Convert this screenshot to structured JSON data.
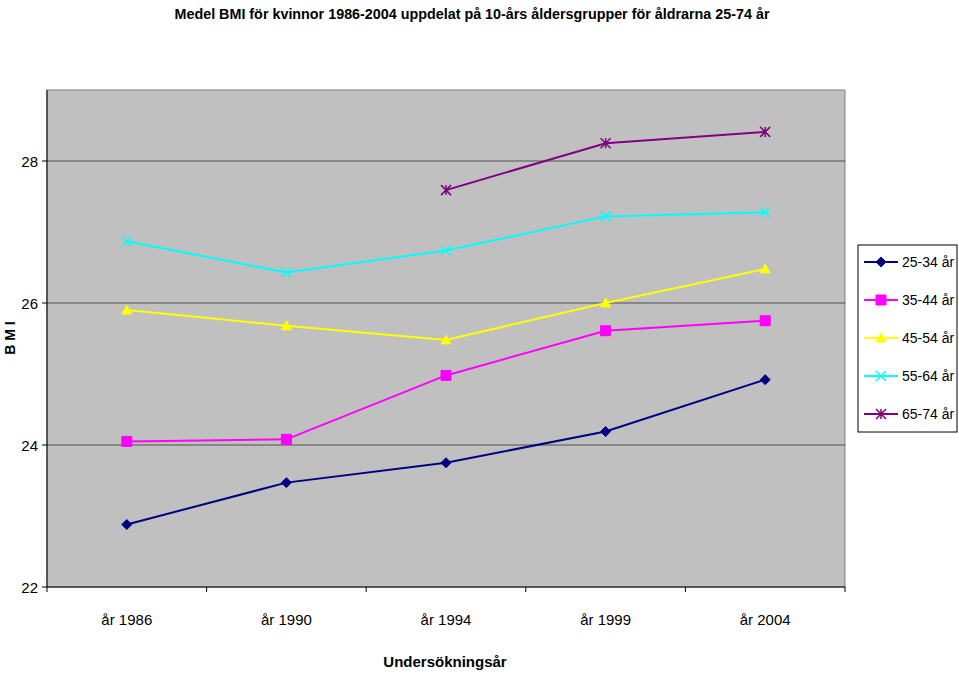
{
  "chart_data": {
    "type": "line",
    "title": "Medel BMI för kvinnor 1986-2004 uppdelat på 10-års åldersgrupper för åldrarna 25-74 år",
    "x_label": "Undersökningsår",
    "y_label": "B M I",
    "categories": [
      "år 1986",
      "år 1990",
      "år 1994",
      "år 1999",
      "år 2004"
    ],
    "ylim": [
      22,
      29
    ],
    "yticks": [
      22,
      24,
      26,
      28
    ],
    "grid": true,
    "legend": "right",
    "series": [
      {
        "name": "25-34 år",
        "color": "#000080",
        "marker": "diamond",
        "values": [
          22.88,
          23.47,
          23.75,
          24.19,
          24.92
        ]
      },
      {
        "name": "35-44 år",
        "color": "#ff00ff",
        "marker": "square",
        "values": [
          24.05,
          24.08,
          24.98,
          25.61,
          25.75
        ]
      },
      {
        "name": "45-54 år",
        "color": "#ffff00",
        "marker": "triangle",
        "values": [
          25.9,
          25.68,
          25.48,
          26.0,
          26.48
        ]
      },
      {
        "name": "55-64 år",
        "color": "#00ffff",
        "marker": "x",
        "values": [
          26.87,
          26.43,
          26.74,
          27.22,
          27.28
        ]
      },
      {
        "name": "65-74 år",
        "color": "#800080",
        "marker": "star",
        "values": [
          null,
          null,
          27.59,
          28.25,
          28.41
        ]
      }
    ]
  }
}
